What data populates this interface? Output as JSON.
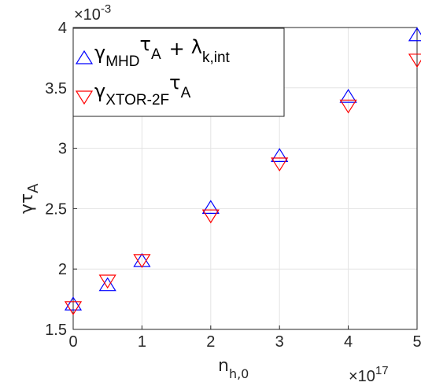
{
  "chart_data": {
    "type": "scatter",
    "xlabel": "n",
    "xlabel_sub": "h,0",
    "ylabel": "γτ",
    "ylabel_sub": "A",
    "x_multiplier": "×10",
    "x_multiplier_exp": "17",
    "y_multiplier": "×10",
    "y_multiplier_exp": "-3",
    "xlim": [
      0,
      5
    ],
    "ylim": [
      1.5,
      4.0
    ],
    "x_ticks": [
      "0",
      "1",
      "2",
      "3",
      "4",
      "5"
    ],
    "y_ticks": [
      "1.5",
      "2",
      "2.5",
      "3",
      "3.5",
      "4"
    ],
    "grid": true,
    "legend_position": "top-left",
    "series": [
      {
        "legend_gamma": "γ",
        "legend_sub": "MHD",
        "legend_tau": "τ",
        "legend_tau_sub": "A",
        "legend_plus": "+",
        "legend_lambda": "λ",
        "legend_lambda_sub": "k,int",
        "marker": "triangle-up",
        "color": "#0000ff",
        "x": [
          0,
          0.5,
          1,
          2,
          3,
          4,
          5
        ],
        "y": [
          1.7,
          1.86,
          2.06,
          2.5,
          2.93,
          3.42,
          3.93
        ]
      },
      {
        "legend_gamma": "γ",
        "legend_sub": "XTOR-2F",
        "legend_tau": "τ",
        "legend_tau_sub": "A",
        "marker": "triangle-down",
        "color": "#ff0000",
        "x": [
          0,
          0.5,
          1,
          2,
          3,
          4,
          5
        ],
        "y": [
          1.69,
          1.91,
          2.08,
          2.45,
          2.88,
          3.36,
          3.74
        ]
      }
    ]
  }
}
